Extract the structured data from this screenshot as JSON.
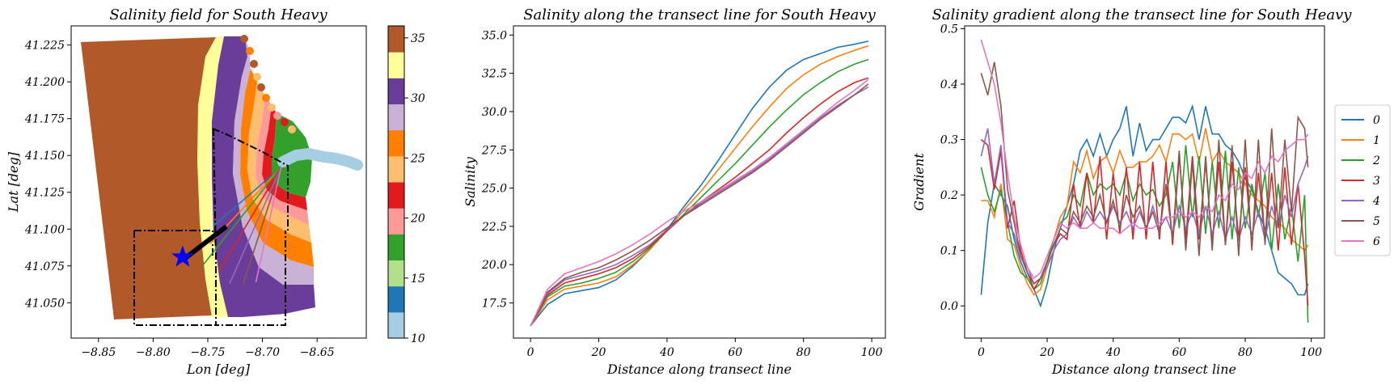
{
  "chart_data": [
    {
      "type": "map",
      "title": "Salinity field for South Heavy",
      "xlabel": "Lon [deg]",
      "ylabel": "Lat [deg]",
      "xlim": [
        -8.875,
        -8.605
      ],
      "ylim": [
        41.026,
        41.238
      ],
      "xticks": [
        "−8.85",
        "−8.80",
        "−8.75",
        "−8.70",
        "−8.65"
      ],
      "xtick_values": [
        -8.85,
        -8.8,
        -8.75,
        -8.7,
        -8.65
      ],
      "yticks": [
        "41.050",
        "41.075",
        "41.100",
        "41.125",
        "41.150",
        "41.175",
        "41.200",
        "41.225"
      ],
      "ytick_values": [
        41.05,
        41.075,
        41.1,
        41.125,
        41.15,
        41.175,
        41.2,
        41.225
      ],
      "colorbar": {
        "range": [
          10,
          36
        ],
        "ticks": [
          "10",
          "15",
          "20",
          "25",
          "30",
          "35"
        ],
        "tick_values": [
          10,
          15,
          20,
          25,
          30,
          35
        ],
        "colors": [
          "#a6cee3",
          "#1f78b4",
          "#b2df8a",
          "#33a02c",
          "#fb9a99",
          "#e31a1c",
          "#fdbf6f",
          "#ff7f00",
          "#cab2d6",
          "#6a3d9a",
          "#ffff99",
          "#b15928"
        ]
      },
      "star": {
        "lon": -8.773,
        "lat": 41.081,
        "color": "#0000ff"
      },
      "transect_origin": {
        "lon": -8.683,
        "lat": 41.142
      },
      "transect_ends": [
        {
          "lon": -8.745,
          "lat": 41.102,
          "color": "#1f77b4"
        },
        {
          "lon": -8.748,
          "lat": 41.09,
          "color": "#ff7f0e"
        },
        {
          "lon": -8.755,
          "lat": 41.075,
          "color": "#2ca02c"
        },
        {
          "lon": -8.74,
          "lat": 41.071,
          "color": "#d62728"
        },
        {
          "lon": -8.73,
          "lat": 41.063,
          "color": "#9467bd"
        },
        {
          "lon": -8.718,
          "lat": 41.062,
          "color": "#8c564b"
        },
        {
          "lon": -8.706,
          "lat": 41.064,
          "color": "#e377c2"
        }
      ]
    },
    {
      "type": "line",
      "title": "Salinity along the transect line for South Heavy",
      "xlabel": "Distance along transect line",
      "ylabel": "Salinity",
      "xlim": [
        -5,
        104
      ],
      "ylim": [
        15.2,
        35.6
      ],
      "xticks": [
        0,
        20,
        40,
        60,
        80,
        100
      ],
      "yticks": [
        "17.5",
        "20.0",
        "22.5",
        "25.0",
        "27.5",
        "30.0",
        "32.5",
        "35.0"
      ],
      "ytick_values": [
        17.5,
        20,
        22.5,
        25,
        27.5,
        30,
        32.5,
        35
      ],
      "x_knots": [
        0,
        5,
        10,
        15,
        20,
        25,
        30,
        35,
        40,
        45,
        50,
        55,
        60,
        65,
        70,
        75,
        80,
        85,
        90,
        95,
        99
      ],
      "series": [
        {
          "name": "0",
          "color": "#1f77b4",
          "values": [
            16.0,
            17.4,
            18.1,
            18.3,
            18.5,
            19.0,
            19.9,
            21.0,
            22.3,
            23.8,
            25.2,
            26.8,
            28.5,
            30.2,
            31.6,
            32.7,
            33.4,
            33.8,
            34.2,
            34.4,
            34.6
          ]
        },
        {
          "name": "1",
          "color": "#ff7f0e",
          "values": [
            16.0,
            17.7,
            18.4,
            18.6,
            18.8,
            19.2,
            20.0,
            21.0,
            22.2,
            23.6,
            24.8,
            26.2,
            27.6,
            29.0,
            30.3,
            31.5,
            32.4,
            33.1,
            33.6,
            34.0,
            34.3
          ]
        },
        {
          "name": "2",
          "color": "#2ca02c",
          "values": [
            16.0,
            17.9,
            18.6,
            18.8,
            19.1,
            19.5,
            20.2,
            21.1,
            22.2,
            23.3,
            24.4,
            25.5,
            26.6,
            27.8,
            29.0,
            30.1,
            31.1,
            31.9,
            32.6,
            33.1,
            33.4
          ]
        },
        {
          "name": "3",
          "color": "#d62728",
          "values": [
            16.0,
            18.0,
            18.8,
            19.1,
            19.4,
            19.8,
            20.4,
            21.2,
            22.2,
            23.2,
            24.1,
            24.9,
            25.7,
            26.6,
            27.5,
            28.6,
            29.6,
            30.5,
            31.3,
            31.9,
            32.2
          ]
        },
        {
          "name": "4",
          "color": "#9467bd",
          "values": [
            16.0,
            18.1,
            19.0,
            19.3,
            19.6,
            20.0,
            20.6,
            21.3,
            22.3,
            23.2,
            24.0,
            24.7,
            25.4,
            26.1,
            26.9,
            27.8,
            28.7,
            29.6,
            30.4,
            31.1,
            31.6
          ]
        },
        {
          "name": "5",
          "color": "#8c564b",
          "values": [
            16.0,
            18.2,
            19.1,
            19.5,
            19.8,
            20.3,
            20.9,
            21.6,
            22.4,
            23.2,
            23.9,
            24.6,
            25.3,
            26.0,
            26.8,
            27.7,
            28.6,
            29.5,
            30.3,
            31.1,
            31.8
          ]
        },
        {
          "name": "6",
          "color": "#e377c2",
          "values": [
            16.0,
            18.4,
            19.4,
            19.8,
            20.2,
            20.7,
            21.3,
            22.0,
            22.8,
            23.5,
            24.1,
            24.8,
            25.5,
            26.2,
            27.0,
            27.9,
            28.8,
            29.7,
            30.6,
            31.4,
            32.1
          ]
        }
      ]
    },
    {
      "type": "line",
      "title": "Salinity gradient along the transect line for South Heavy",
      "xlabel": "Distance along transect line",
      "ylabel": "Gradient",
      "xlim": [
        -5,
        104
      ],
      "ylim": [
        -0.058,
        0.505
      ],
      "xticks": [
        0,
        20,
        40,
        60,
        80,
        100
      ],
      "yticks": [
        "0.0",
        "0.1",
        "0.2",
        "0.3",
        "0.4",
        "0.5"
      ],
      "ytick_values": [
        0,
        0.1,
        0.2,
        0.3,
        0.4,
        0.5
      ],
      "x_knots": [
        0,
        2,
        4,
        6,
        8,
        10,
        12,
        14,
        16,
        18,
        20,
        22,
        24,
        26,
        28,
        30,
        32,
        34,
        36,
        38,
        40,
        42,
        44,
        46,
        48,
        50,
        52,
        54,
        56,
        58,
        60,
        62,
        64,
        66,
        68,
        70,
        72,
        74,
        76,
        78,
        80,
        82,
        84,
        86,
        88,
        90,
        92,
        94,
        96,
        98,
        99
      ],
      "series": [
        {
          "name": "0",
          "color": "#1f77b4",
          "values": [
            0.02,
            0.15,
            0.22,
            0.2,
            0.18,
            0.12,
            0.08,
            0.05,
            0.03,
            0.0,
            0.04,
            0.1,
            0.14,
            0.18,
            0.22,
            0.28,
            0.3,
            0.27,
            0.31,
            0.27,
            0.3,
            0.32,
            0.36,
            0.27,
            0.33,
            0.28,
            0.3,
            0.3,
            0.32,
            0.34,
            0.34,
            0.33,
            0.36,
            0.3,
            0.36,
            0.31,
            0.31,
            0.29,
            0.28,
            0.26,
            0.23,
            0.21,
            0.17,
            0.14,
            0.1,
            0.06,
            0.05,
            0.04,
            0.02,
            0.02,
            0.04
          ]
        },
        {
          "name": "1",
          "color": "#ff7f0e",
          "values": [
            0.19,
            0.19,
            0.16,
            0.22,
            0.12,
            0.11,
            0.07,
            0.04,
            0.02,
            0.03,
            0.07,
            0.12,
            0.16,
            0.18,
            0.26,
            0.24,
            0.28,
            0.23,
            0.26,
            0.27,
            0.24,
            0.28,
            0.25,
            0.25,
            0.26,
            0.26,
            0.27,
            0.29,
            0.26,
            0.31,
            0.31,
            0.3,
            0.31,
            0.26,
            0.32,
            0.26,
            0.28,
            0.26,
            0.25,
            0.24,
            0.22,
            0.2,
            0.19,
            0.18,
            0.16,
            0.15,
            0.14,
            0.12,
            0.11,
            0.1,
            0.11
          ]
        },
        {
          "name": "2",
          "color": "#2ca02c",
          "values": [
            0.25,
            0.2,
            0.17,
            0.21,
            0.15,
            0.09,
            0.06,
            0.05,
            0.03,
            0.04,
            0.08,
            0.12,
            0.15,
            0.16,
            0.2,
            0.18,
            0.24,
            0.2,
            0.22,
            0.21,
            0.22,
            0.2,
            0.24,
            0.19,
            0.22,
            0.2,
            0.21,
            0.18,
            0.2,
            0.26,
            0.14,
            0.29,
            0.16,
            0.27,
            0.13,
            0.26,
            0.14,
            0.28,
            0.12,
            0.25,
            0.14,
            0.22,
            0.16,
            0.24,
            0.1,
            0.22,
            0.12,
            0.18,
            0.08,
            0.2,
            -0.03
          ]
        },
        {
          "name": "3",
          "color": "#d62728",
          "values": [
            0.3,
            0.29,
            0.21,
            0.28,
            0.14,
            0.19,
            0.1,
            0.06,
            0.03,
            0.05,
            0.08,
            0.11,
            0.13,
            0.12,
            0.22,
            0.14,
            0.24,
            0.15,
            0.27,
            0.12,
            0.24,
            0.13,
            0.25,
            0.12,
            0.26,
            0.12,
            0.26,
            0.12,
            0.26,
            0.11,
            0.27,
            0.12,
            0.27,
            0.12,
            0.26,
            0.11,
            0.26,
            0.11,
            0.26,
            0.12,
            0.25,
            0.11,
            0.24,
            0.12,
            0.24,
            0.1,
            0.25,
            0.11,
            0.22,
            0.09,
            0.0
          ]
        },
        {
          "name": "4",
          "color": "#9467bd",
          "values": [
            0.27,
            0.32,
            0.22,
            0.29,
            0.15,
            0.13,
            0.09,
            0.07,
            0.04,
            0.05,
            0.07,
            0.1,
            0.12,
            0.13,
            0.16,
            0.14,
            0.17,
            0.15,
            0.17,
            0.15,
            0.18,
            0.15,
            0.17,
            0.14,
            0.17,
            0.14,
            0.18,
            0.14,
            0.16,
            0.13,
            0.18,
            0.14,
            0.17,
            0.13,
            0.18,
            0.13,
            0.17,
            0.12,
            0.16,
            0.12,
            0.16,
            0.13,
            0.17,
            0.12,
            0.18,
            0.14,
            0.2,
            0.16,
            0.22,
            0.25,
            0.27
          ]
        },
        {
          "name": "5",
          "color": "#8c564b",
          "values": [
            0.42,
            0.38,
            0.44,
            0.36,
            0.21,
            0.15,
            0.09,
            0.06,
            0.04,
            0.05,
            0.08,
            0.11,
            0.14,
            0.13,
            0.17,
            0.15,
            0.18,
            0.16,
            0.2,
            0.15,
            0.19,
            0.14,
            0.2,
            0.16,
            0.18,
            0.14,
            0.17,
            0.13,
            0.22,
            0.12,
            0.28,
            0.1,
            0.26,
            0.09,
            0.27,
            0.1,
            0.3,
            0.11,
            0.29,
            0.09,
            0.3,
            0.1,
            0.3,
            0.11,
            0.32,
            0.14,
            0.3,
            0.17,
            0.34,
            0.32,
            0.25
          ]
        },
        {
          "name": "6",
          "color": "#e377c2",
          "values": [
            0.48,
            0.44,
            0.4,
            0.33,
            0.24,
            0.16,
            0.11,
            0.07,
            0.05,
            0.06,
            0.09,
            0.12,
            0.15,
            0.14,
            0.15,
            0.14,
            0.14,
            0.15,
            0.14,
            0.14,
            0.14,
            0.13,
            0.14,
            0.15,
            0.14,
            0.14,
            0.14,
            0.15,
            0.16,
            0.16,
            0.17,
            0.16,
            0.17,
            0.16,
            0.18,
            0.17,
            0.2,
            0.19,
            0.22,
            0.21,
            0.24,
            0.23,
            0.26,
            0.24,
            0.27,
            0.26,
            0.28,
            0.29,
            0.3,
            0.3,
            0.31
          ]
        }
      ],
      "legend": {
        "position": "right",
        "entries": [
          "0",
          "1",
          "2",
          "3",
          "4",
          "5",
          "6"
        ]
      }
    }
  ]
}
